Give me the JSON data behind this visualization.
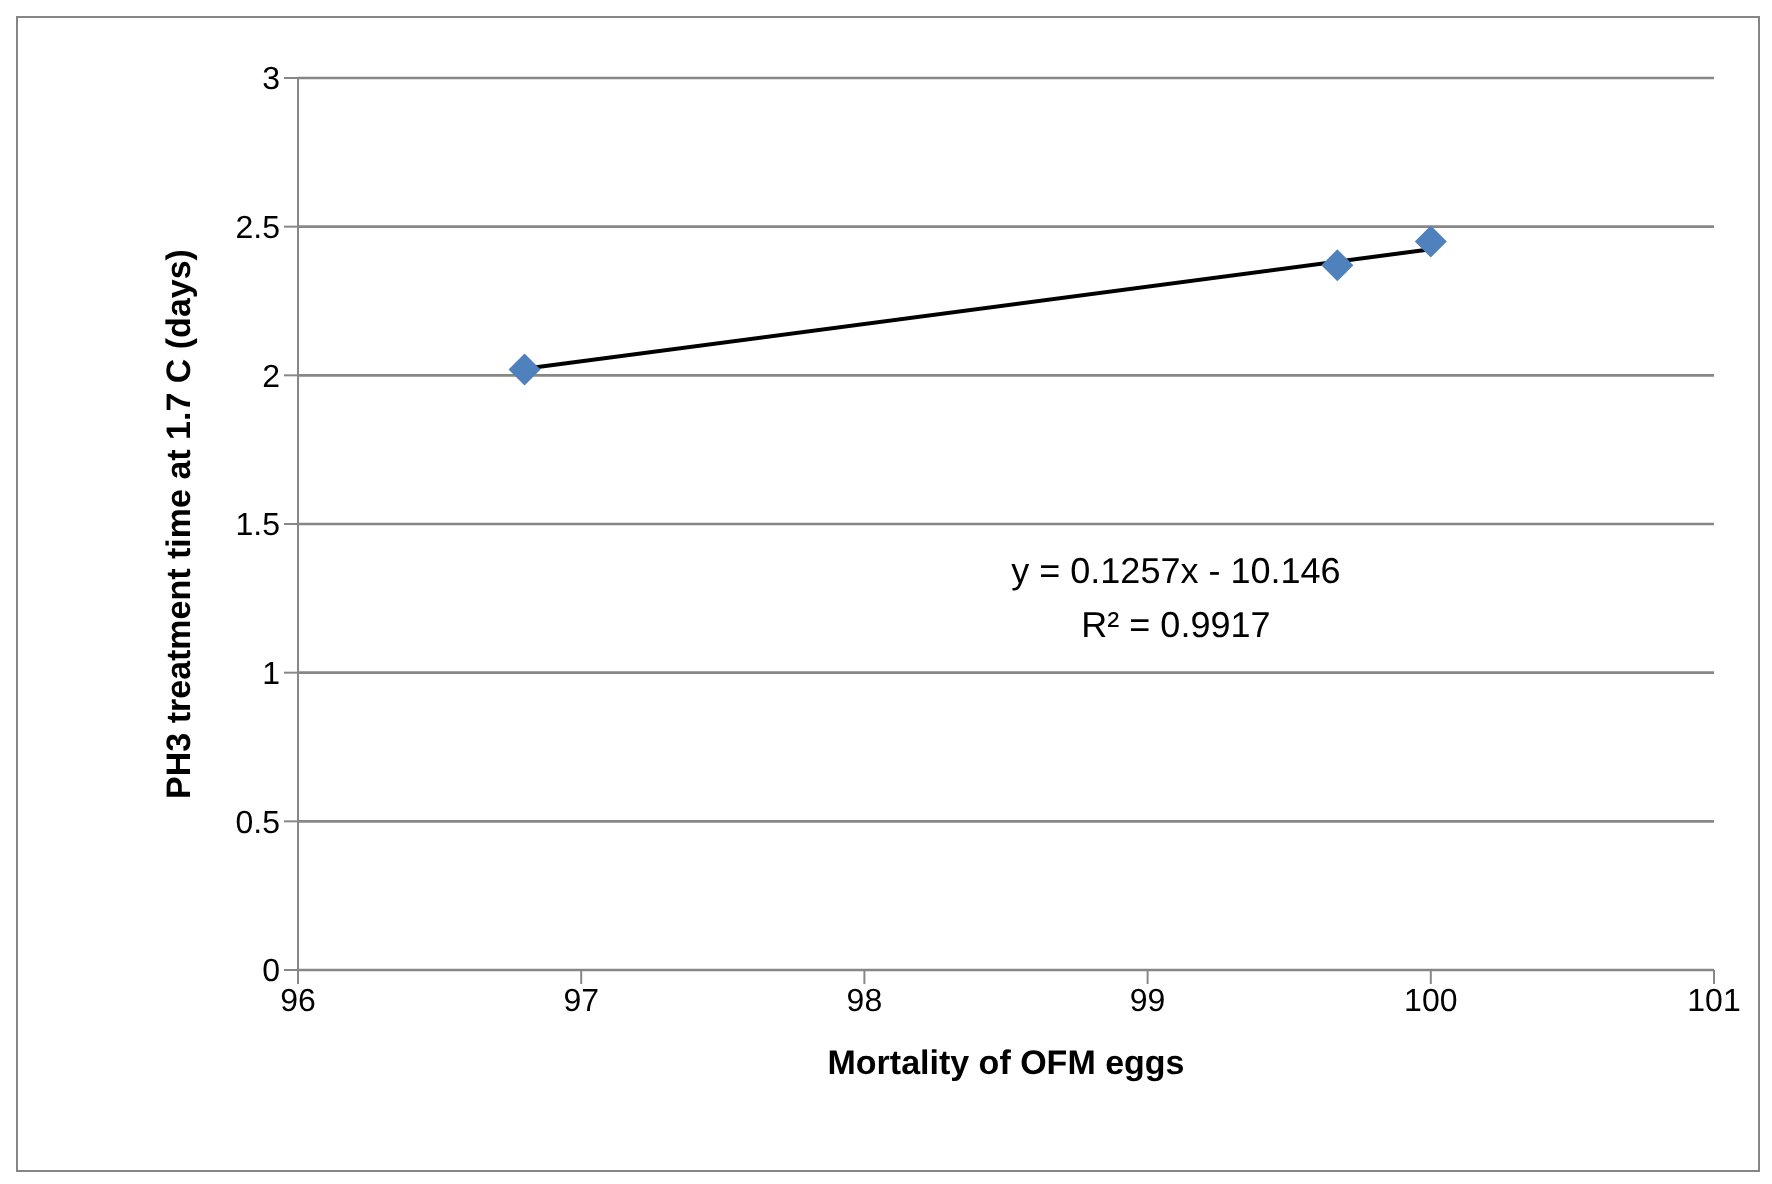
{
  "chart_data": {
    "type": "scatter",
    "xlabel": "Mortality of OFM eggs",
    "ylabel": "PH3 treatment time at 1.7 C (days)",
    "series": [
      {
        "color": "#4f81bd",
        "marker": "diamond",
        "x": [
          96.8,
          99.67,
          100
        ],
        "values": [
          2.02,
          2.37,
          2.45
        ]
      },
      {
        "type": "line",
        "color": "#000000",
        "x": [
          96.8,
          100
        ],
        "values": [
          2.022,
          2.424
        ]
      }
    ],
    "annotations": [
      "y = 0.1257x - 10.146",
      "R² = 0.9917"
    ],
    "xlim": [
      96,
      101
    ],
    "xticks": [
      96,
      97,
      98,
      99,
      100,
      101
    ],
    "ylim": [
      0,
      3
    ],
    "yticks": [
      0,
      0.5,
      1,
      1.5,
      2,
      2.5,
      3
    ],
    "grid": "y",
    "legend": false
  }
}
